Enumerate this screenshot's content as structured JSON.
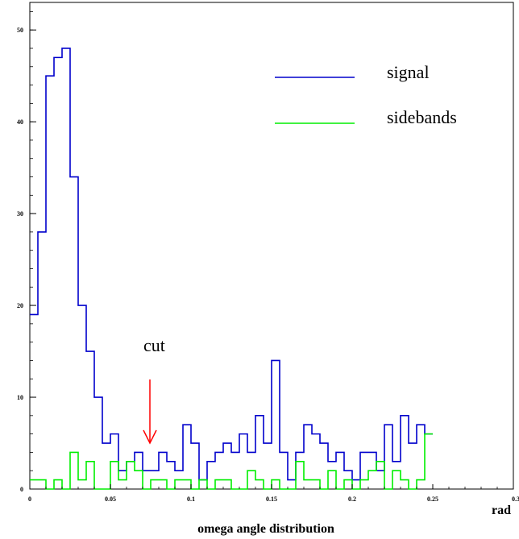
{
  "chart_data": {
    "type": "line",
    "title": "",
    "xlabel": "omega angle distribution",
    "xunit": "rad",
    "ylabel": "",
    "xlim": [
      0,
      0.3
    ],
    "ylim": [
      0,
      53
    ],
    "bin_width": 0.005,
    "x_ticks": [
      0,
      0.05,
      0.1,
      0.15,
      0.2,
      0.25
    ],
    "x_tick_labels": [
      "0",
      "0.05",
      "0.1",
      "0.15",
      "0.2",
      "0.25"
    ],
    "x_tick_label_last": "0.3",
    "y_ticks": [
      0,
      10,
      20,
      30,
      40,
      50
    ],
    "y_tick_labels": [
      "0",
      "10",
      "20",
      "30",
      "40",
      "50"
    ],
    "grid": false,
    "legend_position": "top-right",
    "series": [
      {
        "name": "signal",
        "color": "#0000cc",
        "values": [
          19,
          28,
          45,
          47,
          48,
          34,
          20,
          15,
          10,
          5,
          6,
          2,
          3,
          4,
          2,
          2,
          4,
          3,
          2,
          7,
          5,
          1,
          3,
          4,
          5,
          4,
          6,
          4,
          8,
          5,
          14,
          4,
          1,
          4,
          7,
          6,
          5,
          3,
          4,
          2,
          1,
          4,
          4,
          2,
          7,
          3,
          8,
          5,
          7,
          6
        ]
      },
      {
        "name": "sidebands",
        "color": "#00ee00",
        "values": [
          1,
          1,
          0,
          1,
          0,
          4,
          1,
          3,
          0,
          0,
          3,
          1,
          3,
          2,
          0,
          1,
          1,
          0,
          1,
          1,
          0,
          1,
          0,
          1,
          1,
          0,
          0,
          2,
          1,
          0,
          1,
          0,
          0,
          3,
          1,
          1,
          0,
          2,
          0,
          1,
          0,
          1,
          2,
          3,
          0,
          2,
          1,
          0,
          1,
          6
        ]
      }
    ],
    "annotations": [
      {
        "text": "cut",
        "arrow_at_x": 0.0745,
        "arrow_color": "#ff0000"
      }
    ]
  }
}
